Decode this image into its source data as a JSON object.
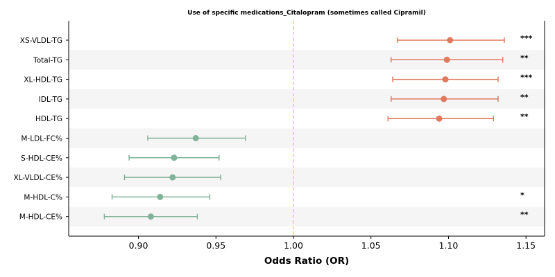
{
  "chart_data": {
    "type": "forest",
    "title": "Use of specific medications_Citalopram (sometimes called Cipramil)",
    "xlabel": "Odds Ratio (OR)",
    "xlim": [
      0.855,
      1.162
    ],
    "xticks": [
      "0.90",
      "0.95",
      "1.00",
      "1.05",
      "1.10",
      "1.15"
    ],
    "reference_line": 1.0,
    "colors": {
      "positive": "#e07a5f",
      "negative": "#81b29a",
      "reference": "#f2cc8f",
      "band": "#f5f5f5"
    },
    "rows": [
      {
        "label": "XS-VLDL-TG",
        "or": 1.101,
        "lo": 1.067,
        "hi": 1.136,
        "sig": "***",
        "direction": "positive"
      },
      {
        "label": "Total-TG",
        "or": 1.099,
        "lo": 1.063,
        "hi": 1.135,
        "sig": "**",
        "direction": "positive"
      },
      {
        "label": "XL-HDL-TG",
        "or": 1.098,
        "lo": 1.064,
        "hi": 1.132,
        "sig": "***",
        "direction": "positive"
      },
      {
        "label": "IDL-TG",
        "or": 1.097,
        "lo": 1.063,
        "hi": 1.132,
        "sig": "**",
        "direction": "positive"
      },
      {
        "label": "HDL-TG",
        "or": 1.094,
        "lo": 1.061,
        "hi": 1.129,
        "sig": "**",
        "direction": "positive"
      },
      {
        "label": "M-LDL-FC%",
        "or": 0.937,
        "lo": 0.906,
        "hi": 0.969,
        "sig": "",
        "direction": "negative"
      },
      {
        "label": "S-HDL-CE%",
        "or": 0.923,
        "lo": 0.894,
        "hi": 0.952,
        "sig": "",
        "direction": "negative"
      },
      {
        "label": "XL-VLDL-CE%",
        "or": 0.922,
        "lo": 0.891,
        "hi": 0.953,
        "sig": "",
        "direction": "negative"
      },
      {
        "label": "M-HDL-C%",
        "or": 0.914,
        "lo": 0.883,
        "hi": 0.946,
        "sig": "*",
        "direction": "negative"
      },
      {
        "label": "M-HDL-CE%",
        "or": 0.908,
        "lo": 0.878,
        "hi": 0.938,
        "sig": "**",
        "direction": "negative"
      }
    ]
  }
}
